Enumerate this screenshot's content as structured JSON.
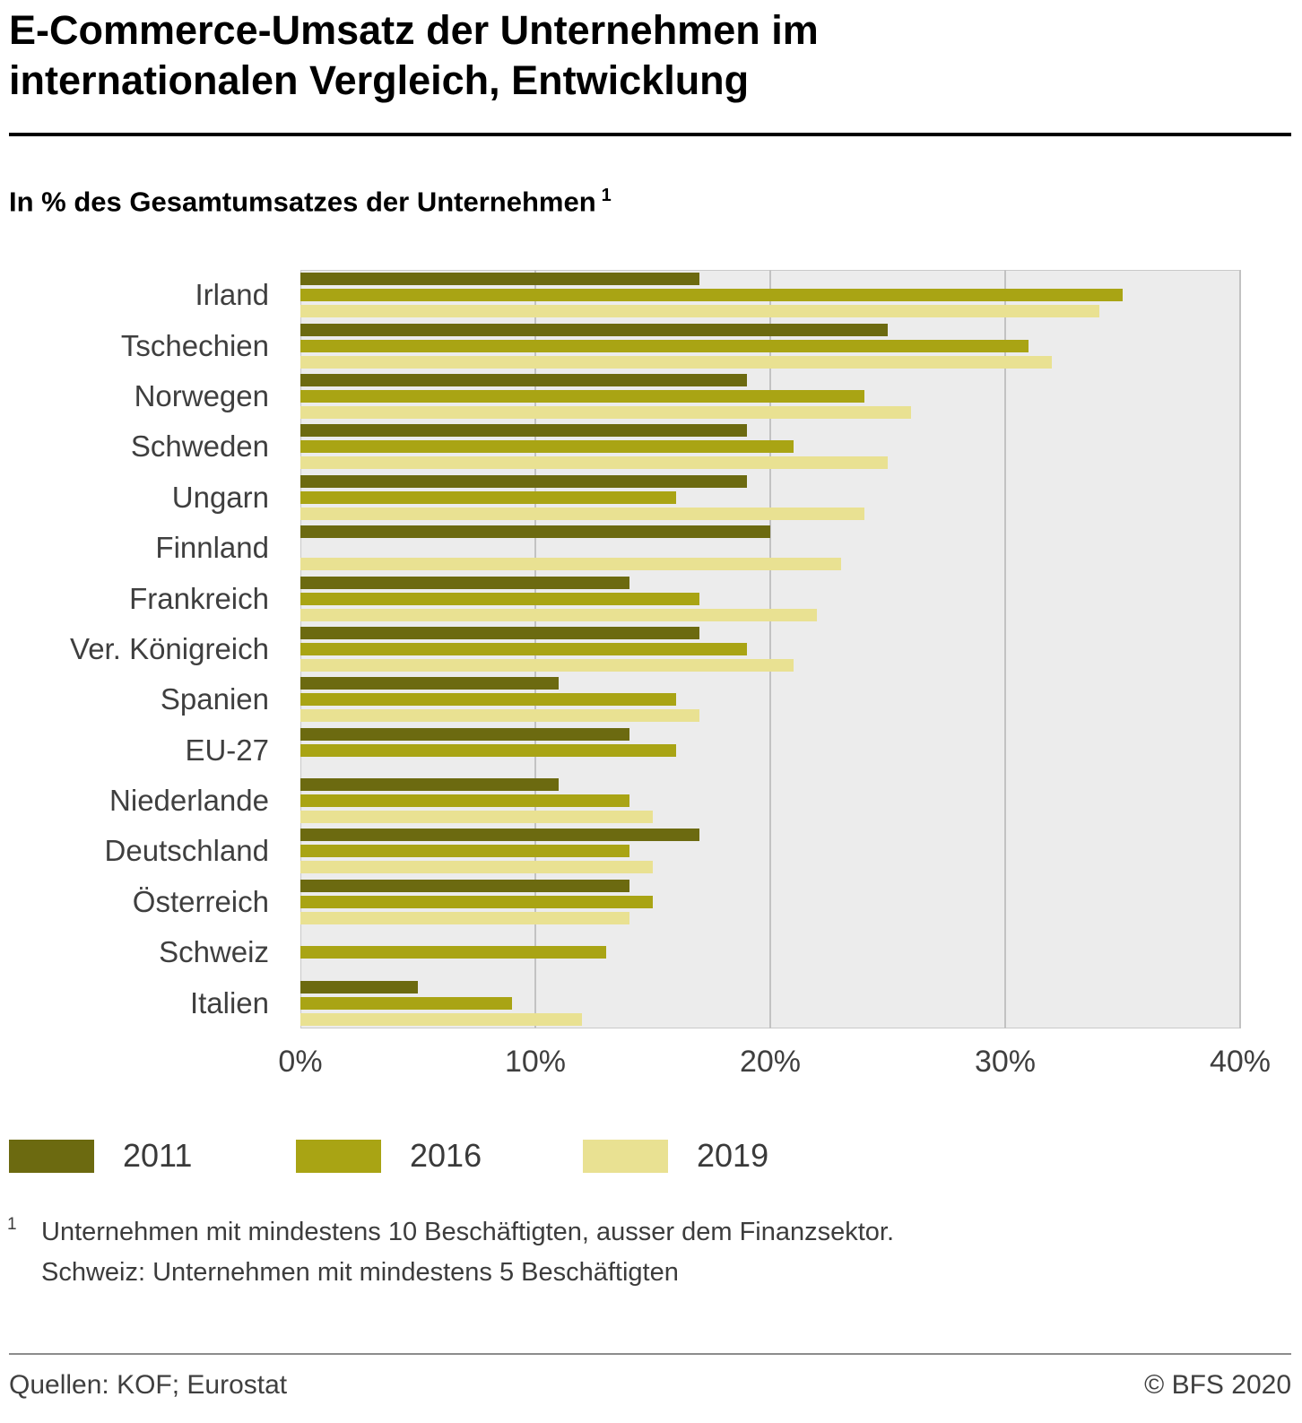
{
  "header": {
    "title_line1": "E-Commerce-Umsatz der Unternehmen im",
    "title_line2": "internationalen Vergleich, Entwicklung",
    "subtitle": "In % des Gesamtumsatzes der Unternehmen",
    "subtitle_footnote_marker": "1"
  },
  "chart_data": {
    "type": "bar",
    "orientation": "horizontal",
    "title": "E-Commerce-Umsatz der Unternehmen im internationalen Vergleich, Entwicklung",
    "subtitle": "In % des Gesamtumsatzes der Unternehmen",
    "categories": [
      "Irland",
      "Tschechien",
      "Norwegen",
      "Schweden",
      "Ungarn",
      "Finnland",
      "Frankreich",
      "Ver. Königreich",
      "Spanien",
      "EU-27",
      "Niederlande",
      "Deutschland",
      "Österreich",
      "Schweiz",
      "Italien"
    ],
    "series": [
      {
        "name": "2011",
        "color": "#6c6a10",
        "values": [
          17,
          25,
          19,
          19,
          19,
          20,
          14,
          17,
          11,
          14,
          11,
          17,
          14,
          null,
          5
        ]
      },
      {
        "name": "2016",
        "color": "#a9a414",
        "values": [
          35,
          31,
          24,
          21,
          16,
          null,
          17,
          19,
          16,
          16,
          14,
          14,
          15,
          13,
          9
        ]
      },
      {
        "name": "2019",
        "color": "#e9e192",
        "values": [
          34,
          32,
          26,
          25,
          24,
          23,
          22,
          21,
          17,
          null,
          15,
          15,
          14,
          null,
          12
        ]
      }
    ],
    "xlim": [
      0,
      40
    ],
    "tick_values": [
      0,
      10,
      20,
      30,
      40
    ],
    "xlabel_ticks": [
      "0%",
      "10%",
      "20%",
      "30%",
      "40%"
    ],
    "grid": "vertical",
    "legend_position": "bottom",
    "plot_bg": "#ececec",
    "gridline_color": "#c2c2c2"
  },
  "footnote": {
    "marker": "1",
    "line1": "Unternehmen mit mindestens 10 Beschäftigten, ausser dem Finanzsektor.",
    "line2": "Schweiz: Unternehmen mit mindestens 5 Beschäftigten"
  },
  "footer": {
    "source": "Quellen: KOF; Eurostat",
    "copyright": "© BFS 2020"
  }
}
